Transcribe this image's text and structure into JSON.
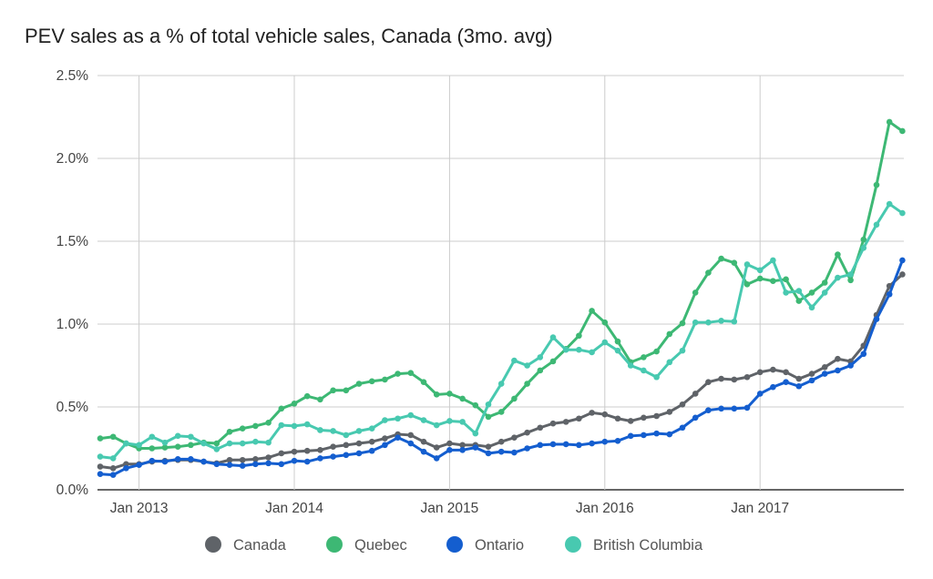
{
  "chart_data": {
    "type": "line",
    "title": "PEV sales as a % of total vehicle sales, Canada (3mo. avg)",
    "xlabel": "",
    "ylabel": "",
    "ylim": [
      0,
      2.5
    ],
    "y_ticks": [
      "0.0%",
      "0.5%",
      "1.0%",
      "1.5%",
      "2.0%",
      "2.5%"
    ],
    "y_tick_values": [
      0,
      0.5,
      1.0,
      1.5,
      2.0,
      2.5
    ],
    "x_ticks": [
      "Jan 2013",
      "Jan 2014",
      "Jan 2015",
      "Jan 2016",
      "Jan 2017"
    ],
    "x_tick_values": [
      "2013-01",
      "2014-01",
      "2015-01",
      "2016-01",
      "2017-01"
    ],
    "grid": true,
    "legend_position": "bottom",
    "x": [
      "2012-10",
      "2012-11",
      "2012-12",
      "2013-01",
      "2013-02",
      "2013-03",
      "2013-04",
      "2013-05",
      "2013-06",
      "2013-07",
      "2013-08",
      "2013-09",
      "2013-10",
      "2013-11",
      "2013-12",
      "2014-01",
      "2014-02",
      "2014-03",
      "2014-04",
      "2014-05",
      "2014-06",
      "2014-07",
      "2014-08",
      "2014-09",
      "2014-10",
      "2014-11",
      "2014-12",
      "2015-01",
      "2015-02",
      "2015-03",
      "2015-04",
      "2015-05",
      "2015-06",
      "2015-07",
      "2015-08",
      "2015-09",
      "2015-10",
      "2015-11",
      "2015-12",
      "2016-01",
      "2016-02",
      "2016-03",
      "2016-04",
      "2016-05",
      "2016-06",
      "2016-07",
      "2016-08",
      "2016-09",
      "2016-10",
      "2016-11",
      "2016-12",
      "2017-01",
      "2017-02",
      "2017-03",
      "2017-04",
      "2017-05",
      "2017-06",
      "2017-07",
      "2017-08",
      "2017-09",
      "2017-10",
      "2017-11",
      "2017-12"
    ],
    "series": [
      {
        "name": "Canada",
        "color": "#5f6368",
        "values": [
          0.14,
          0.13,
          0.155,
          0.155,
          0.17,
          0.175,
          0.18,
          0.18,
          0.17,
          0.16,
          0.18,
          0.18,
          0.185,
          0.195,
          0.22,
          0.23,
          0.235,
          0.24,
          0.26,
          0.27,
          0.28,
          0.29,
          0.31,
          0.335,
          0.33,
          0.29,
          0.255,
          0.28,
          0.27,
          0.27,
          0.26,
          0.29,
          0.315,
          0.345,
          0.375,
          0.4,
          0.41,
          0.43,
          0.465,
          0.455,
          0.43,
          0.415,
          0.435,
          0.445,
          0.47,
          0.515,
          0.58,
          0.65,
          0.67,
          0.665,
          0.68,
          0.71,
          0.725,
          0.71,
          0.67,
          0.7,
          0.74,
          0.79,
          0.775,
          0.87,
          1.055,
          1.23,
          1.3
        ]
      },
      {
        "name": "Quebec",
        "color": "#3db874",
        "values": [
          0.31,
          0.32,
          0.28,
          0.25,
          0.25,
          0.255,
          0.26,
          0.27,
          0.285,
          0.28,
          0.35,
          0.37,
          0.385,
          0.405,
          0.49,
          0.52,
          0.565,
          0.545,
          0.6,
          0.6,
          0.64,
          0.655,
          0.665,
          0.7,
          0.705,
          0.65,
          0.575,
          0.58,
          0.55,
          0.51,
          0.44,
          0.47,
          0.55,
          0.64,
          0.72,
          0.775,
          0.85,
          0.93,
          1.08,
          1.01,
          0.895,
          0.77,
          0.8,
          0.835,
          0.94,
          1.005,
          1.19,
          1.31,
          1.395,
          1.37,
          1.24,
          1.275,
          1.26,
          1.27,
          1.14,
          1.19,
          1.25,
          1.42,
          1.265,
          1.51,
          1.84,
          2.22,
          2.165
        ]
      },
      {
        "name": "Ontario",
        "color": "#145ecf",
        "values": [
          0.095,
          0.09,
          0.13,
          0.15,
          0.175,
          0.17,
          0.185,
          0.185,
          0.17,
          0.155,
          0.15,
          0.145,
          0.155,
          0.16,
          0.155,
          0.175,
          0.17,
          0.19,
          0.2,
          0.21,
          0.22,
          0.235,
          0.27,
          0.315,
          0.28,
          0.23,
          0.19,
          0.24,
          0.24,
          0.255,
          0.22,
          0.23,
          0.225,
          0.25,
          0.27,
          0.275,
          0.275,
          0.27,
          0.28,
          0.29,
          0.295,
          0.325,
          0.33,
          0.34,
          0.335,
          0.375,
          0.435,
          0.48,
          0.49,
          0.49,
          0.495,
          0.58,
          0.62,
          0.65,
          0.625,
          0.66,
          0.7,
          0.72,
          0.75,
          0.82,
          1.03,
          1.18,
          1.385
        ]
      },
      {
        "name": "British Columbia",
        "color": "#48c9b0",
        "values": [
          0.2,
          0.19,
          0.28,
          0.27,
          0.32,
          0.285,
          0.325,
          0.32,
          0.28,
          0.245,
          0.28,
          0.28,
          0.29,
          0.285,
          0.39,
          0.385,
          0.395,
          0.36,
          0.355,
          0.33,
          0.355,
          0.37,
          0.42,
          0.43,
          0.45,
          0.42,
          0.39,
          0.415,
          0.41,
          0.34,
          0.515,
          0.64,
          0.78,
          0.75,
          0.8,
          0.92,
          0.845,
          0.845,
          0.83,
          0.89,
          0.84,
          0.75,
          0.72,
          0.68,
          0.77,
          0.84,
          1.01,
          1.01,
          1.02,
          1.015,
          1.36,
          1.325,
          1.385,
          1.19,
          1.2,
          1.1,
          1.19,
          1.28,
          1.3,
          1.46,
          1.6,
          1.725,
          1.67
        ]
      }
    ]
  }
}
